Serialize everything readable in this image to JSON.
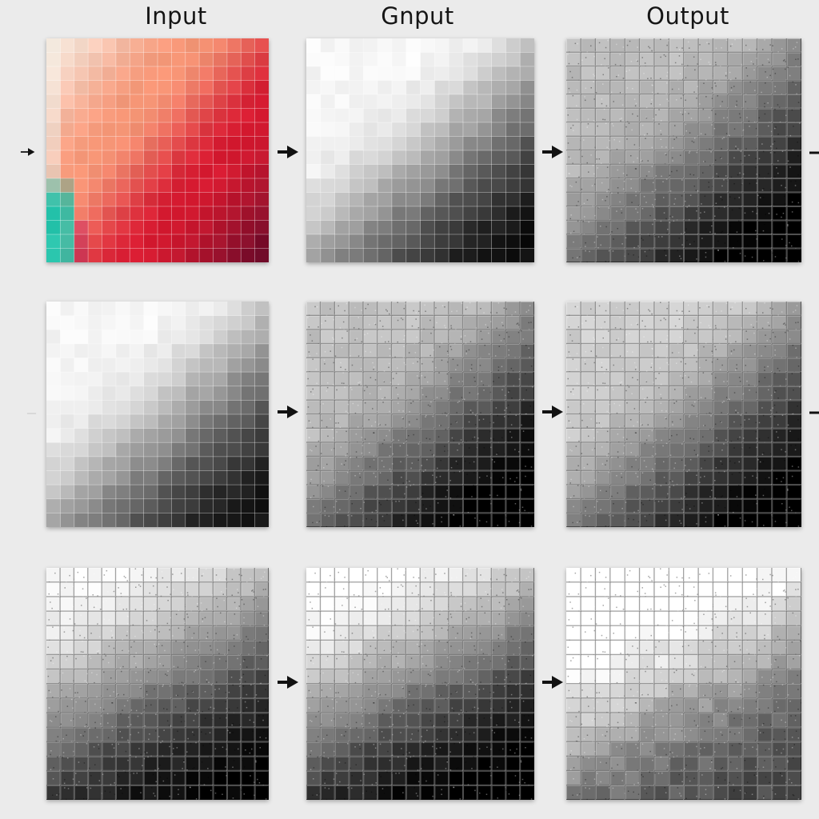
{
  "headers": [
    "Input",
    "Gnput",
    "Output"
  ],
  "panels": [
    {
      "name": "panel-input-color",
      "style": "color",
      "textured": false,
      "shade": [
        1.0,
        1.0
      ]
    },
    {
      "name": "panel-row1-gray",
      "style": "gray",
      "textured": false,
      "shade": [
        0.98,
        1.05
      ]
    },
    {
      "name": "panel-row1-output",
      "style": "gray",
      "textured": true,
      "shade": [
        0.72,
        1.25
      ]
    },
    {
      "name": "panel-row2-gray",
      "style": "gray",
      "textured": false,
      "shade": [
        1.0,
        1.0
      ]
    },
    {
      "name": "panel-row2-middle",
      "style": "gray",
      "textured": true,
      "shade": [
        0.72,
        1.35
      ]
    },
    {
      "name": "panel-row2-output",
      "style": "gray",
      "textured": true,
      "shade": [
        0.78,
        1.25
      ]
    },
    {
      "name": "panel-row3-left",
      "style": "gradient",
      "textured": true,
      "shade": [
        1.0,
        1.15
      ]
    },
    {
      "name": "panel-row3-middle",
      "style": "gradient",
      "textured": true,
      "shade": [
        1.0,
        1.25
      ]
    },
    {
      "name": "panel-row3-output",
      "style": "gradient",
      "textured": true,
      "shade": [
        0.55,
        1.9
      ]
    }
  ],
  "colors": {
    "background": "#ebebeb",
    "arrow": "#111111",
    "text": "#151515"
  },
  "icons": [
    "arrow-right-icon"
  ]
}
